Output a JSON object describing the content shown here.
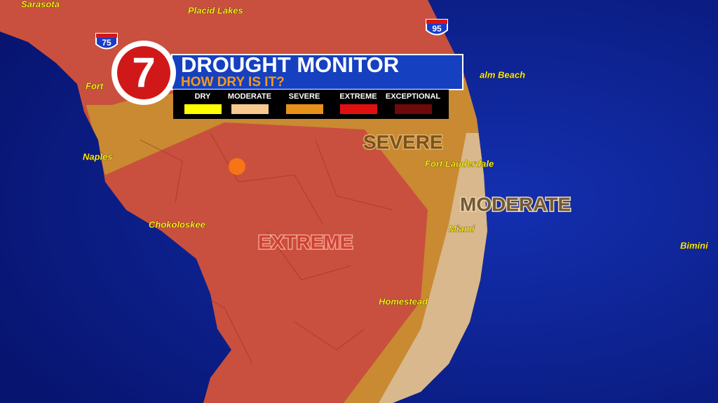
{
  "header": {
    "logo": "7",
    "title": "DROUGHT MONITOR",
    "subtitle": "HOW DRY IS IT?"
  },
  "legend": [
    {
      "label": "DRY",
      "color": "#ffff00"
    },
    {
      "label": "MODERATE",
      "color": "#f7c98f"
    },
    {
      "label": "SEVERE",
      "color": "#e8901a"
    },
    {
      "label": "EXTREME",
      "color": "#e01010"
    },
    {
      "label": "EXCEPTIONAL",
      "color": "#6e0a0a"
    }
  ],
  "zones": [
    {
      "label": "SEVERE",
      "color": "#c98a32"
    },
    {
      "label": "MODERATE",
      "color": "#d8b88c"
    },
    {
      "label": "EXTREME",
      "color": "#c9503e"
    }
  ],
  "highways": [
    "75",
    "95"
  ],
  "places": [
    "Sarasota",
    "Placid Lakes",
    "Fort",
    "alm Beach",
    "Naples",
    "Fort Lauderdale",
    "Chokoloskee",
    "Miami",
    "Homestead",
    "Bimini"
  ]
}
